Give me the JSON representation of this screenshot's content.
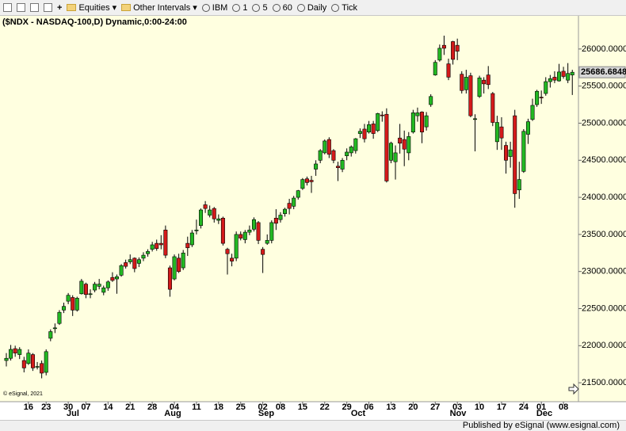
{
  "toolbar": {
    "items": [
      "Equities",
      "Other Intervals",
      "IBM",
      "1",
      "5",
      "60",
      "Daily",
      "Tick"
    ]
  },
  "status": "Published by eSignal (www.esignal.com)",
  "chart_data": {
    "type": "candlestick",
    "title": "($NDX - NASDAQ-100,D) Dynamic,0:00-24:00",
    "copyright": "© eSignal, 2021",
    "up_color": "#22b822",
    "down_color": "#d41a1a",
    "months": [
      "Jul",
      "Aug",
      "Sep",
      "Oct",
      "Nov",
      "Dec"
    ],
    "categories": [
      null,
      null,
      null,
      null,
      null,
      "16",
      null,
      null,
      null,
      "23",
      null,
      null,
      null,
      null,
      "30",
      null,
      null,
      null,
      "07",
      null,
      null,
      null,
      null,
      "14",
      null,
      null,
      null,
      null,
      "21",
      null,
      null,
      null,
      null,
      "28",
      null,
      null,
      null,
      null,
      "04",
      null,
      null,
      null,
      null,
      "11",
      null,
      null,
      null,
      null,
      "18",
      null,
      null,
      null,
      null,
      "25",
      null,
      null,
      null,
      null,
      "02",
      null,
      null,
      null,
      "08",
      null,
      null,
      null,
      null,
      "15",
      null,
      null,
      null,
      null,
      "22",
      null,
      null,
      null,
      null,
      "29",
      null,
      null,
      null,
      null,
      "06",
      null,
      null,
      null,
      null,
      "13",
      null,
      null,
      null,
      null,
      "20",
      null,
      null,
      null,
      null,
      "27",
      null,
      null,
      null,
      null,
      "03",
      null,
      null,
      null,
      null,
      "10",
      null,
      null,
      null,
      null,
      "17",
      null,
      null,
      null,
      null,
      "24",
      null,
      null,
      null,
      "01",
      null,
      null,
      null,
      null,
      "08",
      null,
      null
    ],
    "open": [
      21800,
      21830,
      21960,
      21880,
      21800,
      21760,
      21880,
      21710,
      21760,
      21640,
      22100,
      22230,
      22300,
      22480,
      22600,
      22650,
      22480,
      22700,
      22830,
      22700,
      22750,
      22800,
      22720,
      22780,
      22920,
      22900,
      22950,
      23120,
      23130,
      23180,
      23110,
      23180,
      23240,
      23300,
      23380,
      23380,
      23560,
      23050,
      22900,
      23180,
      23050,
      23380,
      23360,
      23560,
      23620,
      23900,
      23760,
      23850,
      23690,
      23720,
      23300,
      23180,
      23180,
      23500,
      23430,
      23530,
      23570,
      23660,
      23300,
      23380,
      23420,
      23720,
      23700,
      23780,
      23920,
      23880,
      24000,
      24120,
      24250,
      24230,
      24380,
      24500,
      24600,
      24780,
      24630,
      24420,
      24380,
      24560,
      24600,
      24630,
      24860,
      24920,
      24880,
      24990,
      24900,
      25110,
      25120,
      24500,
      24480,
      24800,
      24780,
      24600,
      24880,
      25100,
      25150,
      24950,
      25250,
      25650,
      25850,
      26050,
      25800,
      26100,
      26050,
      25660,
      25450,
      25640,
      25050,
      25360,
      25580,
      25650,
      25400,
      24750,
      24950,
      24700,
      24550,
      25100,
      24100,
      24350,
      24850,
      25050,
      25250,
      25350,
      25400,
      25560,
      25620,
      25570,
      25700,
      25580,
      25650
    ],
    "high": [
      21900,
      22010,
      22000,
      21980,
      21850,
      21950,
      21900,
      21780,
      21800,
      21950,
      22220,
      22300,
      22480,
      22580,
      22710,
      22680,
      22660,
      22900,
      22850,
      22760,
      22860,
      22900,
      22810,
      22880,
      22990,
      22960,
      23100,
      23160,
      23230,
      23190,
      23190,
      23260,
      23300,
      23400,
      23430,
      23490,
      23620,
      23080,
      23230,
      23240,
      23290,
      23470,
      23560,
      23700,
      23850,
      23950,
      23890,
      23870,
      23770,
      23740,
      23320,
      23240,
      23540,
      23540,
      23560,
      23620,
      23730,
      23680,
      23330,
      23500,
      23690,
      23840,
      23800,
      23860,
      23980,
      24020,
      24100,
      24260,
      24280,
      24290,
      24500,
      24650,
      24780,
      24810,
      24650,
      24480,
      24530,
      24660,
      24700,
      24800,
      24930,
      24990,
      25030,
      25030,
      25140,
      25160,
      25200,
      24750,
      24700,
      24990,
      24900,
      24880,
      25180,
      25210,
      25160,
      25150,
      25390,
      25850,
      26060,
      26180,
      25870,
      26110,
      26140,
      25700,
      25720,
      25680,
      25120,
      25640,
      25620,
      25770,
      25420,
      25100,
      25080,
      24750,
      24750,
      25180,
      24480,
      24920,
      25060,
      25330,
      25450,
      25440,
      25620,
      25650,
      25700,
      25800,
      25760,
      25810,
      25720
    ],
    "low": [
      21720,
      21800,
      21850,
      21820,
      21640,
      21740,
      21660,
      21680,
      21560,
      21600,
      22060,
      22170,
      22280,
      22440,
      22560,
      22400,
      22460,
      22690,
      22640,
      22640,
      22720,
      22760,
      22680,
      22740,
      22860,
      22700,
      22930,
      23040,
      23100,
      22990,
      23060,
      23140,
      23200,
      23270,
      23280,
      23300,
      23180,
      22660,
      22880,
      22980,
      23020,
      23210,
      23330,
      23500,
      23580,
      23790,
      23730,
      23660,
      23640,
      23350,
      22960,
      23070,
      23140,
      23420,
      23380,
      23490,
      23540,
      23370,
      22980,
      23360,
      23380,
      23560,
      23660,
      23740,
      23770,
      23840,
      23970,
      24100,
      24160,
      24060,
      24290,
      24460,
      24580,
      24530,
      24460,
      24220,
      24340,
      24500,
      24550,
      24590,
      24800,
      24740,
      24860,
      24790,
      24880,
      25020,
      24200,
      24460,
      24240,
      24590,
      24420,
      24500,
      24860,
      25020,
      24730,
      24900,
      25220,
      25640,
      25830,
      25920,
      25580,
      25790,
      25850,
      25400,
      25400,
      25080,
      24620,
      25340,
      25400,
      25460,
      24960,
      24640,
      24640,
      24320,
      24400,
      23860,
      23980,
      24330,
      24720,
      25030,
      25220,
      25260,
      25370,
      25480,
      25540,
      25560,
      25600,
      25540,
      25380
    ],
    "close": [
      21830,
      21950,
      21900,
      21950,
      21700,
      21900,
      21700,
      21720,
      21630,
      21920,
      22190,
      22240,
      22450,
      22530,
      22680,
      22480,
      22640,
      22870,
      22690,
      22700,
      22830,
      22830,
      22780,
      22860,
      22880,
      22930,
      23080,
      23070,
      23160,
      23040,
      23160,
      23220,
      23270,
      23360,
      23310,
      23360,
      23220,
      22760,
      23200,
      23000,
      23250,
      23320,
      23520,
      23560,
      23830,
      23850,
      23830,
      23710,
      23710,
      23380,
      23240,
      23140,
      23500,
      23450,
      23530,
      23560,
      23700,
      23420,
      23230,
      23420,
      23660,
      23650,
      23760,
      23840,
      23850,
      23990,
      24090,
      24240,
      24200,
      24210,
      24450,
      24630,
      24760,
      24580,
      24500,
      24400,
      24500,
      24610,
      24680,
      24790,
      24890,
      24790,
      24980,
      24860,
      25130,
      25100,
      24220,
      24730,
      24600,
      24730,
      24650,
      24820,
      25140,
      25140,
      24880,
      25100,
      25360,
      25820,
      26010,
      26010,
      25620,
      25860,
      25970,
      25440,
      25620,
      25100,
      25060,
      25610,
      25530,
      25520,
      25010,
      25010,
      24800,
      24500,
      24640,
      24050,
      24240,
      24890,
      25020,
      25240,
      25430,
      25340,
      25560,
      25600,
      25580,
      25690,
      25630,
      25670,
      25686.6848
    ],
    "ylim": [
      21245,
      26447
    ],
    "yticks": [
      {
        "value": 21500,
        "label": "21500.0000"
      },
      {
        "value": 22000,
        "label": "22000.0000"
      },
      {
        "value": 22500,
        "label": "22500.0000"
      },
      {
        "value": 23000,
        "label": "23000.0000"
      },
      {
        "value": 23500,
        "label": "23500.0000"
      },
      {
        "value": 24000,
        "label": "24000.0000"
      },
      {
        "value": 24500,
        "label": "24500.0000"
      },
      {
        "value": 25000,
        "label": "25000.0000"
      },
      {
        "value": 25500,
        "label": "25500.0000"
      },
      {
        "value": 26000,
        "label": "26000.0000"
      }
    ],
    "grid": false
  }
}
